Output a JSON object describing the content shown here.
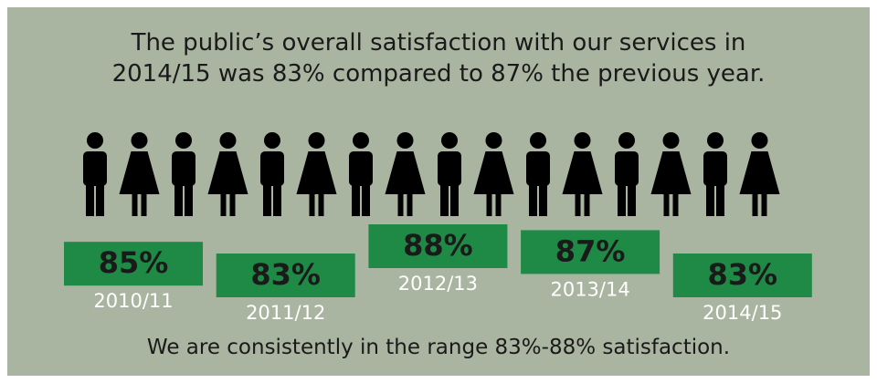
{
  "chart_data": {
    "type": "bar",
    "title": "The public’s overall satisfaction with our services in\n2014/15 was 83% compared to 87% the previous year.",
    "categories": [
      "2010/11",
      "2011/12",
      "2012/13",
      "2013/14",
      "2014/15"
    ],
    "values": [
      85,
      83,
      88,
      87,
      83
    ],
    "value_labels": [
      "85%",
      "83%",
      "88%",
      "87%",
      "83%"
    ],
    "color": "#1f8a46",
    "annotation": "We are consistently in the range 83%-88% satisfaction."
  }
}
